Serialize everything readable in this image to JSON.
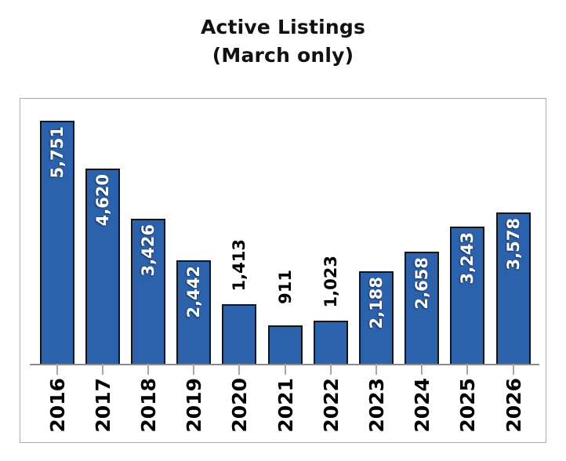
{
  "title": {
    "line1": "Active Listings",
    "line2": "(March only)"
  },
  "chart_data": {
    "type": "bar",
    "title": "Active Listings (March only)",
    "categories": [
      "2016",
      "2017",
      "2018",
      "2019",
      "2020",
      "2021",
      "2022",
      "2023",
      "2024",
      "2025",
      "2026"
    ],
    "values": [
      5751,
      4620,
      3426,
      2442,
      1413,
      911,
      1023,
      2188,
      2658,
      3243,
      3578
    ],
    "value_labels": [
      "5,751",
      "4,620",
      "3,426",
      "2,442",
      "1,413",
      "911",
      "1,023",
      "2,188",
      "2,658",
      "3,243",
      "3,578"
    ],
    "label_positions": [
      "inside",
      "inside",
      "inside",
      "inside",
      "outside",
      "outside",
      "outside",
      "inside",
      "inside",
      "inside",
      "inside"
    ],
    "xlabel": "",
    "ylabel": "",
    "ylim": [
      0,
      6300
    ],
    "grid": false,
    "legend": false,
    "label_rotation_degrees": 90,
    "colors": {
      "bar_fill": "#2C62AC",
      "bar_border": "#10161F",
      "inside_label": "#FFFFFF",
      "outside_label": "#000000",
      "year_label": "#000000",
      "axis_line": "#8C8C8C",
      "tick": "#A8A8A8",
      "frame_border": "#ABABAB",
      "title_text": "#111111",
      "background": "#FFFFFF"
    }
  }
}
